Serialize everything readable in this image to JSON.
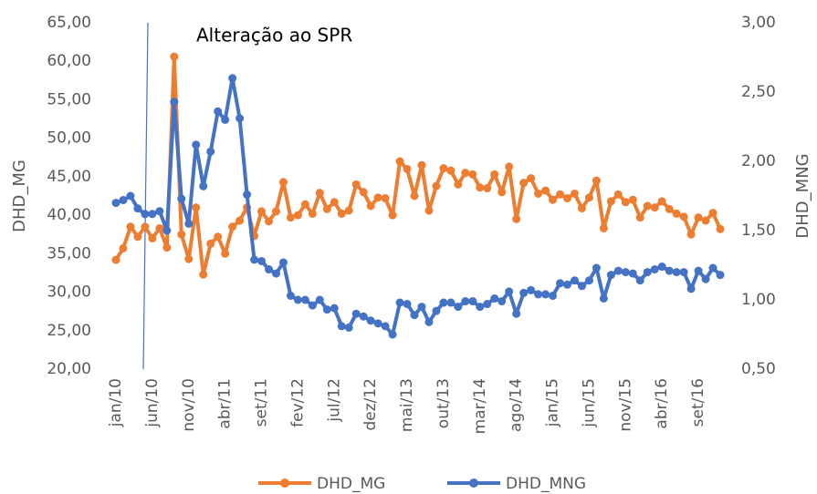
{
  "chart_data": {
    "type": "line",
    "annotation": "Alteração ao SPR",
    "ylabel": "DHD_MG",
    "y2label": "DHD_MNG",
    "categories": [
      "jan/10",
      null,
      null,
      null,
      null,
      "jun/10",
      null,
      null,
      null,
      null,
      "nov/10",
      null,
      null,
      null,
      null,
      "abr/11",
      null,
      null,
      null,
      null,
      "set/11",
      null,
      null,
      null,
      null,
      "fev/12",
      null,
      null,
      null,
      null,
      "jul/12",
      null,
      null,
      null,
      null,
      "dez/12",
      null,
      null,
      null,
      null,
      "mai/13",
      null,
      null,
      null,
      null,
      "out/13",
      null,
      null,
      null,
      null,
      "mar/14",
      null,
      null,
      null,
      null,
      "ago/14",
      null,
      null,
      null,
      null,
      "jan/15",
      null,
      null,
      null,
      null,
      "jun/15",
      null,
      null,
      null,
      null,
      "nov/15",
      null,
      null,
      null,
      null,
      "abr/16",
      null,
      null,
      null,
      null,
      "set/16",
      null,
      null,
      null
    ],
    "series": [
      {
        "name": "DHD_MG",
        "color": "#ed7d31",
        "values": [
          34.2,
          35.7,
          38.5,
          37.2,
          38.5,
          37,
          38.3,
          35.8,
          60.6,
          37.5,
          34.3,
          41,
          32.3,
          36.3,
          37.2,
          35,
          38.5,
          39.3,
          41,
          37.3,
          40.5,
          39.2,
          40.5,
          44.3,
          39.7,
          40,
          41.4,
          40.2,
          42.9,
          40.8,
          41.7,
          40.2,
          40.6,
          44,
          43,
          41.2,
          42.3,
          42.2,
          40,
          47,
          46,
          42.5,
          46.5,
          40.6,
          43.8,
          46.1,
          45.8,
          44,
          45.5,
          45.3,
          43.6,
          43.5,
          45.3,
          43,
          46.3,
          39.5,
          44.2,
          44.8,
          42.8,
          43.2,
          42,
          42.7,
          42.2,
          42.8,
          40.9,
          42.3,
          44.5,
          38.3,
          41.8,
          42.7,
          41.7,
          42,
          39.7,
          41.2,
          41,
          41.8,
          40.8,
          40.2,
          39.8,
          37.5,
          39.7,
          39.3,
          40.3,
          38.2
        ]
      },
      {
        "name": "DHD_MNG",
        "color": "#4472c4",
        "axis": "y2",
        "values": [
          1.7,
          1.72,
          1.75,
          1.66,
          1.62,
          1.62,
          1.64,
          1.5,
          2.43,
          1.73,
          1.55,
          2.12,
          1.82,
          2.07,
          2.36,
          2.3,
          2.6,
          2.31,
          1.76,
          1.29,
          1.28,
          1.22,
          1.19,
          1.27,
          1.03,
          1.0,
          1.0,
          0.96,
          1.0,
          0.93,
          0.94,
          0.81,
          0.8,
          0.9,
          0.88,
          0.85,
          0.83,
          0.81,
          0.75,
          0.98,
          0.97,
          0.89,
          0.95,
          0.84,
          0.92,
          0.98,
          0.98,
          0.95,
          0.99,
          0.99,
          0.95,
          0.97,
          1.01,
          0.99,
          1.06,
          0.9,
          1.05,
          1.07,
          1.04,
          1.04,
          1.03,
          1.12,
          1.11,
          1.14,
          1.1,
          1.14,
          1.23,
          1.01,
          1.18,
          1.21,
          1.2,
          1.19,
          1.14,
          1.2,
          1.22,
          1.24,
          1.21,
          1.2,
          1.2,
          1.08,
          1.21,
          1.15,
          1.23,
          1.18
        ]
      }
    ],
    "ylim": [
      20,
      65
    ],
    "yticks": [
      {
        "value": 20,
        "label": "20,00"
      },
      {
        "value": 25,
        "label": "25,00"
      },
      {
        "value": 30,
        "label": "30,00"
      },
      {
        "value": 35,
        "label": "35,00"
      },
      {
        "value": 40,
        "label": "40,00"
      },
      {
        "value": 45,
        "label": "45,00"
      },
      {
        "value": 50,
        "label": "50,00"
      },
      {
        "value": 55,
        "label": "55,00"
      },
      {
        "value": 60,
        "label": "60,00"
      },
      {
        "value": 65,
        "label": "65,00"
      }
    ],
    "y2lim": [
      0.5,
      3
    ],
    "y2ticks": [
      {
        "value": 0.5,
        "label": "0,50"
      },
      {
        "value": 1,
        "label": "1,00"
      },
      {
        "value": 1.5,
        "label": "1,50"
      },
      {
        "value": 2,
        "label": "2,00"
      },
      {
        "value": 2.5,
        "label": "2,50"
      },
      {
        "value": 3,
        "label": "3,00"
      }
    ],
    "legend": "bottom"
  }
}
